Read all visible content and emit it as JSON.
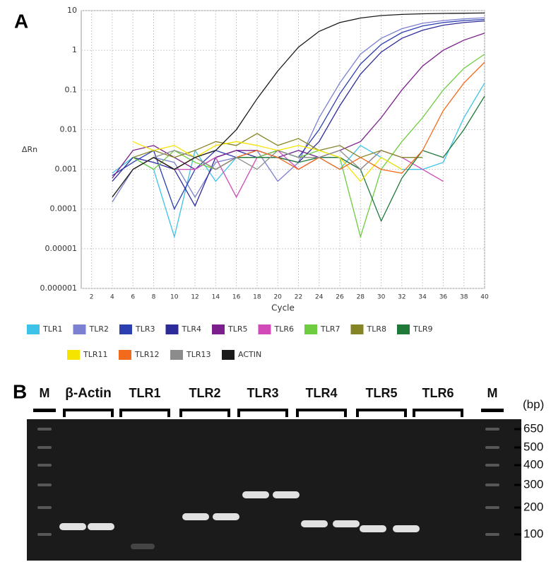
{
  "panel_labels": [
    "A",
    "B"
  ],
  "chart_data": {
    "type": "line",
    "xlabel": "Cycle",
    "ylabel": "ΔRn",
    "log_y": true,
    "grid": true,
    "x": [
      4,
      6,
      8,
      10,
      12,
      14,
      16,
      18,
      20,
      22,
      24,
      26,
      28,
      30,
      32,
      34,
      36,
      38,
      40
    ],
    "xlim": [
      1,
      40
    ],
    "xticks": [
      2,
      4,
      6,
      8,
      10,
      12,
      14,
      16,
      18,
      20,
      22,
      24,
      26,
      28,
      30,
      32,
      34,
      36,
      38,
      40
    ],
    "ylim": [
      1e-06,
      10
    ],
    "yticks": [
      1e-06,
      1e-05,
      0.0001,
      0.001,
      0.01,
      0.1,
      1,
      10
    ],
    "series": [
      {
        "name": "TLR1",
        "color": "#3ec3e8",
        "values": [
          0.0008,
          0.002,
          0.001,
          2e-05,
          0.003,
          0.0005,
          0.002,
          0.003,
          0.002,
          0.003,
          0.002,
          0.001,
          0.004,
          0.002,
          0.001,
          0.001,
          0.0015,
          0.02,
          0.15
        ]
      },
      {
        "name": "TLR2",
        "color": "#7b80d0",
        "values": [
          0.00015,
          0.001,
          0.002,
          0.0015,
          0.0002,
          0.0015,
          0.002,
          0.003,
          0.0005,
          0.0015,
          0.02,
          0.15,
          0.8,
          2,
          3.5,
          4.8,
          5.6,
          6.2,
          6.6
        ]
      },
      {
        "name": "TLR3",
        "color": "#2b3fb0",
        "values": [
          0.0007,
          0.0015,
          0.003,
          0.0001,
          0.001,
          0.003,
          0.002,
          0.002,
          0.003,
          0.002,
          0.01,
          0.08,
          0.45,
          1.4,
          2.8,
          4.1,
          5,
          5.6,
          6
        ]
      },
      {
        "name": "TLR4",
        "color": "#2d2a9a",
        "values": [
          0.0005,
          0.002,
          0.0015,
          0.001,
          0.00012,
          0.002,
          0.003,
          0.002,
          0.002,
          0.0015,
          0.005,
          0.04,
          0.25,
          0.9,
          2,
          3.2,
          4.3,
          5,
          5.5
        ]
      },
      {
        "name": "TLR5",
        "color": "#7b1f8c",
        "values": [
          0.0006,
          0.003,
          0.004,
          0.002,
          0.001,
          0.002,
          0.003,
          0.003,
          0.002,
          0.003,
          0.002,
          0.003,
          0.005,
          0.02,
          0.1,
          0.4,
          1,
          1.8,
          2.7
        ]
      },
      {
        "name": "TLR6",
        "color": "#d04ab8",
        "values": [
          null,
          0.001,
          0.002,
          0.001,
          0.001,
          0.002,
          0.0002,
          0.002,
          0.003,
          0.001,
          0.002,
          0.002,
          0.001,
          0.003,
          0.002,
          0.001,
          0.0005,
          null,
          null
        ]
      },
      {
        "name": "TLR7",
        "color": "#6dcc3f",
        "values": [
          null,
          0.002,
          0.001,
          0.003,
          0.0015,
          0.001,
          0.002,
          0.002,
          0.003,
          0.002,
          0.003,
          0.002,
          2e-05,
          0.001,
          0.005,
          0.02,
          0.1,
          0.35,
          0.8
        ]
      },
      {
        "name": "TLR8",
        "color": "#858526",
        "values": [
          null,
          0.002,
          0.003,
          0.002,
          0.003,
          0.005,
          0.004,
          0.008,
          0.004,
          0.006,
          0.003,
          0.004,
          0.002,
          0.003,
          0.002,
          0.002,
          null,
          null,
          null
        ]
      },
      {
        "name": "TLR9",
        "color": "#1f7a3a",
        "values": [
          null,
          0.001,
          0.002,
          0.001,
          0.002,
          0.001,
          0.002,
          0.002,
          0.002,
          0.0015,
          0.002,
          0.002,
          0.001,
          5e-05,
          0.0006,
          0.003,
          0.002,
          0.01,
          0.07
        ]
      },
      {
        "name": "TLR11",
        "color": "#f5e400",
        "values": [
          null,
          0.005,
          0.003,
          0.004,
          0.002,
          0.004,
          0.005,
          0.004,
          0.003,
          0.004,
          0.003,
          0.002,
          0.0005,
          0.002,
          0.001,
          null,
          null,
          null,
          null
        ]
      },
      {
        "name": "TLR12",
        "color": "#f26a1b",
        "values": [
          null,
          0.001,
          0.002,
          0.001,
          0.002,
          0.001,
          0.002,
          0.003,
          0.002,
          0.001,
          0.002,
          0.001,
          0.002,
          0.001,
          0.0008,
          0.003,
          0.03,
          0.15,
          0.5
        ]
      },
      {
        "name": "TLR13",
        "color": "#8c8c8c",
        "values": [
          null,
          0.001,
          0.002,
          0.003,
          0.002,
          0.001,
          0.002,
          0.001,
          0.003,
          0.002,
          0.002,
          0.003,
          0.001,
          0.003,
          null,
          null,
          null,
          null,
          null
        ]
      },
      {
        "name": "ACTIN",
        "color": "#1a1a1a",
        "values": [
          0.0002,
          0.001,
          0.002,
          0.001,
          0.002,
          0.003,
          0.01,
          0.06,
          0.3,
          1.2,
          3,
          5,
          6.5,
          7.5,
          8,
          8.3,
          8.5,
          8.6,
          8.7
        ]
      }
    ]
  },
  "gel": {
    "lanes": [
      "M",
      "β-Actin",
      "TLR1",
      "TLR2",
      "TLR3",
      "TLR4",
      "TLR5",
      "TLR6",
      "M"
    ],
    "size_unit": "(bp)",
    "ladder": [
      "650",
      "500",
      "400",
      "300",
      "200",
      "100"
    ]
  }
}
